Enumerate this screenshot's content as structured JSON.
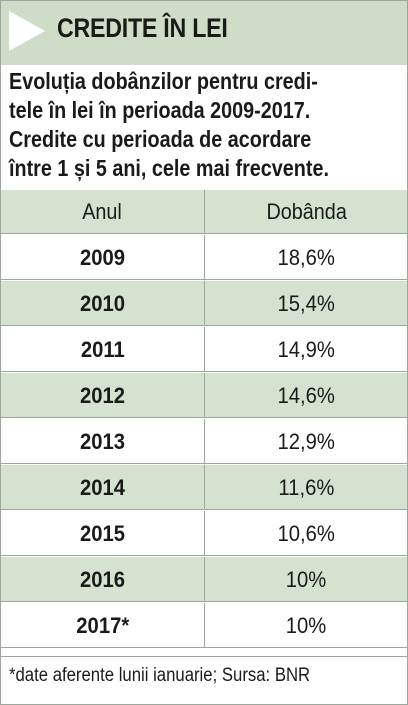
{
  "header": {
    "title": "CREDITE ÎN LEI"
  },
  "subtitle_lines": [
    "Evoluția dobânzilor pentru credi-",
    "tele în lei în perioada 2009-2017.",
    "Credite cu perioada de acordare",
    "între 1 și 5 ani, cele mai frecvente."
  ],
  "chart_data": {
    "type": "table",
    "columns": [
      "Anul",
      "Dobânda"
    ],
    "rows": [
      {
        "year": "2009",
        "rate": "18,6%"
      },
      {
        "year": "2010",
        "rate": "15,4%"
      },
      {
        "year": "2011",
        "rate": "14,9%"
      },
      {
        "year": "2012",
        "rate": "14,6%"
      },
      {
        "year": "2013",
        "rate": "12,9%"
      },
      {
        "year": "2014",
        "rate": "11,6%"
      },
      {
        "year": "2015",
        "rate": "10,6%"
      },
      {
        "year": "2016",
        "rate": "10%"
      },
      {
        "year": "2017*",
        "rate": "10%"
      }
    ],
    "values": [
      18.6,
      15.4,
      14.9,
      14.6,
      12.9,
      11.6,
      10.6,
      10,
      10
    ]
  },
  "footnote": "*date aferente lunii ianuarie; Sursa: BNR",
  "colors": {
    "band": "#d5e2cf",
    "banner": "#cfdcc8",
    "rule": "#9aa79a"
  }
}
